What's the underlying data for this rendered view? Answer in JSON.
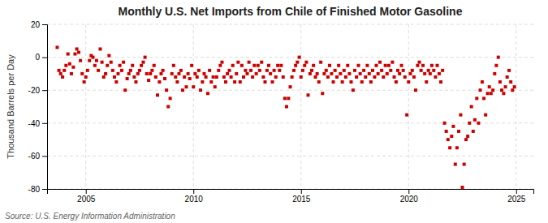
{
  "chart_data": {
    "type": "scatter",
    "title": "Monthly U.S. Net Imports from Chile of Finished Motor Gasoline",
    "ylabel": "Thousand Barrels per Day",
    "source": "Source: U.S. Energy Information Administration",
    "color": "#cc0000",
    "marker": "square",
    "grid": true,
    "xlim": [
      2003.2,
      2025.8
    ],
    "xticks": [
      2005,
      2010,
      2015,
      2020,
      2025
    ],
    "ylim": [
      -80,
      20
    ],
    "yticks": [
      -80,
      -60,
      -40,
      -20,
      0,
      20
    ],
    "x": [
      2003.67,
      2003.75,
      2003.83,
      2003.92,
      2004.0,
      2004.08,
      2004.17,
      2004.25,
      2004.33,
      2004.42,
      2004.5,
      2004.58,
      2004.67,
      2004.75,
      2004.83,
      2004.92,
      2005.0,
      2005.08,
      2005.17,
      2005.25,
      2005.33,
      2005.42,
      2005.5,
      2005.58,
      2005.67,
      2005.75,
      2005.83,
      2005.92,
      2006.0,
      2006.08,
      2006.17,
      2006.25,
      2006.33,
      2006.42,
      2006.5,
      2006.58,
      2006.67,
      2006.75,
      2006.83,
      2006.92,
      2007.0,
      2007.08,
      2007.17,
      2007.25,
      2007.33,
      2007.42,
      2007.5,
      2007.58,
      2007.67,
      2007.75,
      2007.83,
      2007.92,
      2008.0,
      2008.08,
      2008.17,
      2008.25,
      2008.33,
      2008.42,
      2008.5,
      2008.58,
      2008.67,
      2008.75,
      2008.83,
      2008.92,
      2009.0,
      2009.08,
      2009.17,
      2009.25,
      2009.33,
      2009.42,
      2009.5,
      2009.58,
      2009.67,
      2009.75,
      2009.83,
      2009.92,
      2010.0,
      2010.08,
      2010.17,
      2010.25,
      2010.33,
      2010.42,
      2010.5,
      2010.58,
      2010.67,
      2010.75,
      2010.83,
      2010.92,
      2011.0,
      2011.08,
      2011.17,
      2011.25,
      2011.33,
      2011.42,
      2011.5,
      2011.58,
      2011.67,
      2011.75,
      2011.83,
      2011.92,
      2012.0,
      2012.08,
      2012.17,
      2012.25,
      2012.33,
      2012.42,
      2012.5,
      2012.58,
      2012.67,
      2012.75,
      2012.83,
      2012.92,
      2013.0,
      2013.08,
      2013.17,
      2013.25,
      2013.33,
      2013.42,
      2013.5,
      2013.58,
      2013.67,
      2013.75,
      2013.83,
      2013.92,
      2014.0,
      2014.08,
      2014.17,
      2014.25,
      2014.33,
      2014.42,
      2014.5,
      2014.58,
      2014.67,
      2014.75,
      2014.83,
      2014.92,
      2015.0,
      2015.08,
      2015.17,
      2015.25,
      2015.33,
      2015.42,
      2015.5,
      2015.58,
      2015.67,
      2015.75,
      2015.83,
      2015.92,
      2016.0,
      2016.08,
      2016.17,
      2016.25,
      2016.33,
      2016.42,
      2016.5,
      2016.58,
      2016.67,
      2016.75,
      2016.83,
      2016.92,
      2017.0,
      2017.08,
      2017.17,
      2017.25,
      2017.33,
      2017.42,
      2017.5,
      2017.58,
      2017.67,
      2017.75,
      2017.83,
      2017.92,
      2018.0,
      2018.08,
      2018.17,
      2018.25,
      2018.33,
      2018.42,
      2018.5,
      2018.58,
      2018.67,
      2018.75,
      2018.83,
      2018.92,
      2019.0,
      2019.08,
      2019.17,
      2019.25,
      2019.33,
      2019.42,
      2019.5,
      2019.58,
      2019.67,
      2019.75,
      2019.83,
      2019.92,
      2020.0,
      2020.08,
      2020.17,
      2020.25,
      2020.33,
      2020.42,
      2020.5,
      2020.58,
      2020.67,
      2020.75,
      2020.83,
      2020.92,
      2021.0,
      2021.08,
      2021.17,
      2021.25,
      2021.33,
      2021.42,
      2021.5,
      2021.58,
      2021.67,
      2021.75,
      2021.83,
      2021.92,
      2022.0,
      2022.08,
      2022.17,
      2022.25,
      2022.33,
      2022.42,
      2022.5,
      2022.58,
      2022.67,
      2022.75,
      2022.83,
      2022.92,
      2023.0,
      2023.08,
      2023.17,
      2023.25,
      2023.33,
      2023.42,
      2023.5,
      2023.58,
      2023.67,
      2023.75,
      2023.83,
      2023.92,
      2024.0,
      2024.08,
      2024.17,
      2024.25,
      2024.33,
      2024.42,
      2024.5,
      2024.58,
      2024.67,
      2024.75,
      2024.83,
      2024.92
    ],
    "values": [
      6,
      -8,
      -10,
      -12,
      -8,
      -5,
      2,
      -4,
      -10,
      -6,
      2,
      5,
      3,
      -2,
      -10,
      -15,
      -12,
      -8,
      -2,
      1,
      0,
      -5,
      -2,
      -8,
      5,
      -3,
      -12,
      -10,
      -5,
      1,
      -3,
      -8,
      -12,
      -15,
      -10,
      -5,
      -8,
      -3,
      -20,
      -13,
      -10,
      -8,
      -5,
      -12,
      -15,
      -10,
      -8,
      -5,
      -3,
      0,
      -10,
      -14,
      -10,
      -8,
      -5,
      -12,
      -23,
      -15,
      -10,
      -8,
      -13,
      -20,
      -30,
      -25,
      -10,
      -5,
      -12,
      -15,
      -10,
      -8,
      -20,
      -12,
      -18,
      -10,
      -13,
      -5,
      -18,
      -10,
      -12,
      -8,
      -20,
      -15,
      -10,
      -12,
      -22,
      -8,
      -15,
      -12,
      -18,
      -12,
      -8,
      -5,
      -3,
      -12,
      -15,
      -10,
      -8,
      -12,
      -5,
      -15,
      -10,
      -3,
      -15,
      -5,
      -12,
      -8,
      -10,
      -3,
      -8,
      -12,
      -5,
      -10,
      -5,
      -8,
      -3,
      -12,
      -15,
      -8,
      -5,
      -10,
      -15,
      -8,
      -12,
      -5,
      -8,
      -5,
      -12,
      -25,
      -30,
      -25,
      -18,
      -12,
      -8,
      -5,
      -3,
      0,
      -12,
      -8,
      -5,
      -3,
      -23,
      -10,
      -8,
      -5,
      -12,
      -10,
      -15,
      -3,
      -22,
      -10,
      -8,
      -12,
      -5,
      -10,
      -15,
      -8,
      -12,
      -5,
      -10,
      -15,
      -8,
      -12,
      -5,
      -10,
      -15,
      -20,
      -8,
      -12,
      -5,
      -10,
      -15,
      -8,
      -12,
      -5,
      -10,
      -15,
      -8,
      -12,
      -5,
      -10,
      -3,
      -8,
      -12,
      -5,
      -10,
      -5,
      -8,
      -3,
      -12,
      -15,
      -8,
      -10,
      -5,
      -8,
      -12,
      -35,
      -15,
      -10,
      -8,
      -12,
      -20,
      -5,
      -3,
      -8,
      -5,
      -10,
      -15,
      -8,
      -10,
      -5,
      -8,
      -12,
      -5,
      -10,
      -15,
      -8,
      -40,
      -45,
      -50,
      -55,
      -48,
      -42,
      -65,
      -55,
      -45,
      -35,
      -79,
      -65,
      -50,
      -48,
      -40,
      -30,
      -45,
      -38,
      -25,
      -40,
      -20,
      -15,
      -25,
      -35,
      -22,
      -18,
      -22,
      -20,
      -10,
      -5,
      0,
      -15,
      -20,
      -22,
      -18,
      -12,
      -8,
      -15,
      -20,
      -18
    ]
  }
}
